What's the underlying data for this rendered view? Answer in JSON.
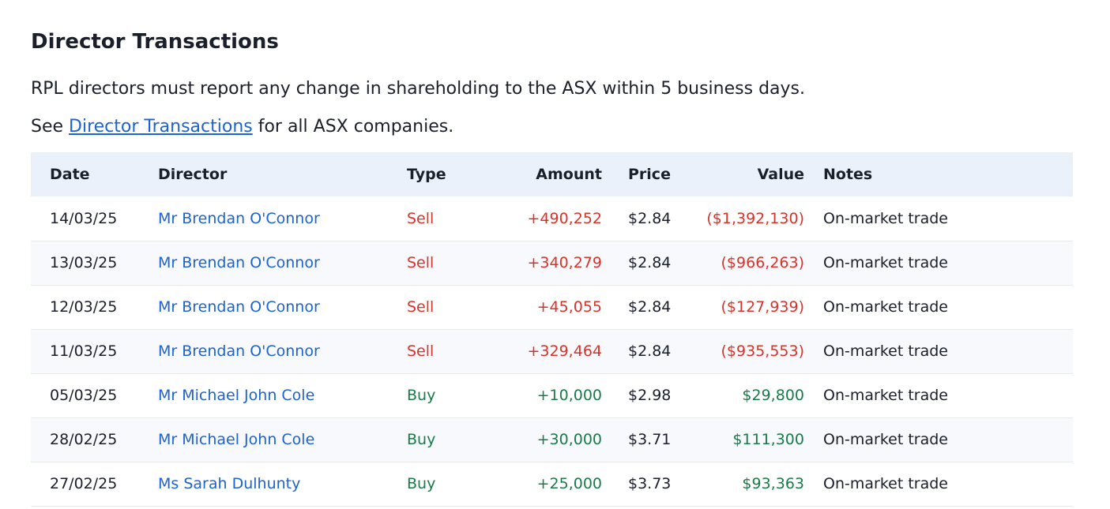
{
  "heading": "Director Transactions",
  "description": "RPL directors must report any change in shareholding to the ASX within 5 business days.",
  "see_line": {
    "prefix": "See ",
    "link": "Director Transactions",
    "suffix": " for all ASX companies."
  },
  "colors": {
    "sell": "#d8332a",
    "buy": "#1a7a4a",
    "link": "#1c63d1",
    "header_bg": "#eaf1fa"
  },
  "table": {
    "columns": [
      "Date",
      "Director",
      "Type",
      "Amount",
      "Price",
      "Value",
      "Notes"
    ],
    "rows": [
      {
        "date": "14/03/25",
        "director": "Mr Brendan O'Connor",
        "type": "Sell",
        "amount": "+490,252",
        "price": "$2.84",
        "value": "($1,392,130)",
        "notes": "On-market trade"
      },
      {
        "date": "13/03/25",
        "director": "Mr Brendan O'Connor",
        "type": "Sell",
        "amount": "+340,279",
        "price": "$2.84",
        "value": "($966,263)",
        "notes": "On-market trade"
      },
      {
        "date": "12/03/25",
        "director": "Mr Brendan O'Connor",
        "type": "Sell",
        "amount": "+45,055",
        "price": "$2.84",
        "value": "($127,939)",
        "notes": "On-market trade"
      },
      {
        "date": "11/03/25",
        "director": "Mr Brendan O'Connor",
        "type": "Sell",
        "amount": "+329,464",
        "price": "$2.84",
        "value": "($935,553)",
        "notes": "On-market trade"
      },
      {
        "date": "05/03/25",
        "director": "Mr Michael John Cole",
        "type": "Buy",
        "amount": "+10,000",
        "price": "$2.98",
        "value": "$29,800",
        "notes": "On-market trade"
      },
      {
        "date": "28/02/25",
        "director": "Mr Michael John Cole",
        "type": "Buy",
        "amount": "+30,000",
        "price": "$3.71",
        "value": "$111,300",
        "notes": "On-market trade"
      },
      {
        "date": "27/02/25",
        "director": "Ms Sarah Dulhunty",
        "type": "Buy",
        "amount": "+25,000",
        "price": "$3.73",
        "value": "$93,363",
        "notes": "On-market trade"
      }
    ]
  }
}
